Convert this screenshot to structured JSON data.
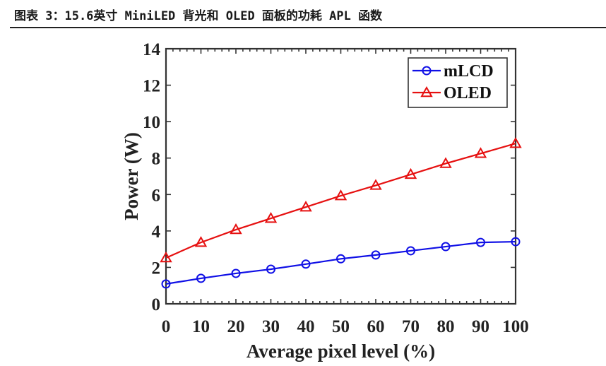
{
  "figure": {
    "title": "图表 3：15.6英寸 MiniLED 背光和 OLED 面板的功耗 APL 函数"
  },
  "chart_data": {
    "type": "line",
    "title": "",
    "xlabel": "Average pixel level (%)",
    "ylabel": "Power (W)",
    "xlim": [
      0,
      100
    ],
    "ylim": [
      0,
      14
    ],
    "xticks": [
      0,
      10,
      20,
      30,
      40,
      50,
      60,
      70,
      80,
      90,
      100
    ],
    "yticks": [
      0,
      2,
      4,
      6,
      8,
      10,
      12,
      14
    ],
    "grid": false,
    "legend_position": "top-right",
    "x": [
      0,
      10,
      20,
      30,
      40,
      50,
      60,
      70,
      80,
      90,
      100
    ],
    "series": [
      {
        "name": "mLCD",
        "color": "#1010e6",
        "marker": "circle",
        "values": [
          1.09,
          1.4,
          1.67,
          1.9,
          2.18,
          2.47,
          2.68,
          2.91,
          3.14,
          3.37,
          3.41
        ]
      },
      {
        "name": "OLED",
        "color": "#e61010",
        "marker": "triangle",
        "values": [
          2.52,
          3.37,
          4.07,
          4.69,
          5.31,
          5.93,
          6.5,
          7.1,
          7.7,
          8.25,
          8.8
        ]
      }
    ]
  }
}
